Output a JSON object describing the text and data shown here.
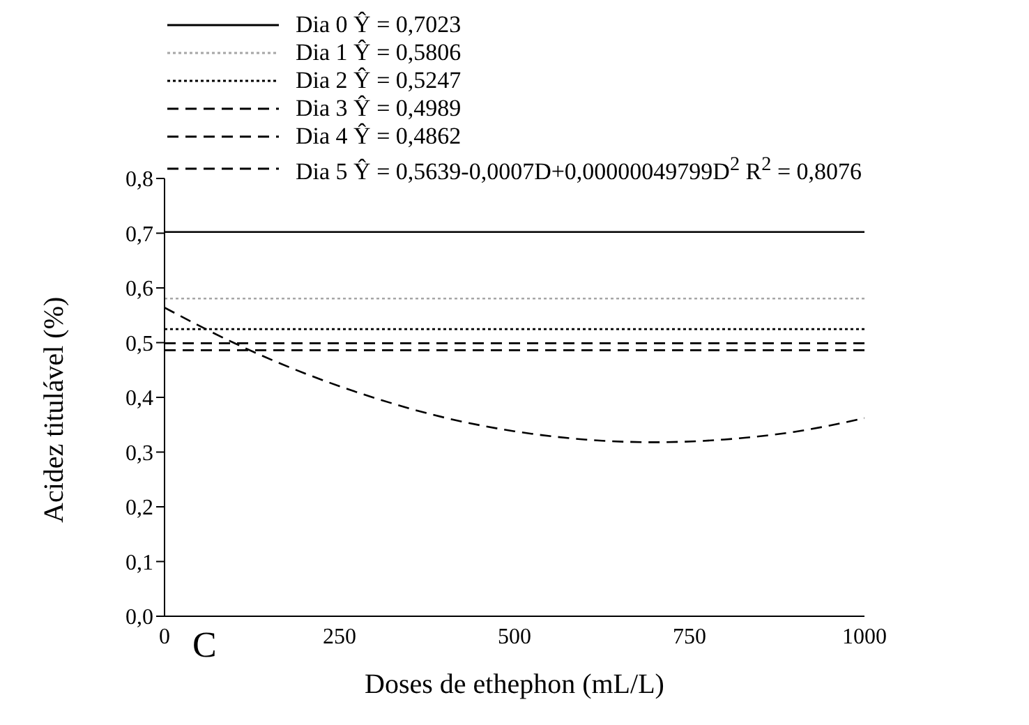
{
  "chart_data": {
    "type": "line",
    "xlabel": "Doses de ethephon (mL/L)",
    "ylabel": "Acidez titulável (%)",
    "xlim": [
      0,
      1000
    ],
    "xticks": [
      0,
      250,
      500,
      750,
      1000
    ],
    "ylim": [
      0,
      0.8
    ],
    "yticks": [
      {
        "value": 0,
        "label": "0,0"
      },
      {
        "value": 0.1,
        "label": "0,1"
      },
      {
        "value": 0.2,
        "label": "0,2"
      },
      {
        "value": 0.3,
        "label": "0,3"
      },
      {
        "value": 0.4,
        "label": "0,4"
      },
      {
        "value": 0.5,
        "label": "0,5"
      },
      {
        "value": 0.6,
        "label": "0,6"
      },
      {
        "value": 0.7,
        "label": "0,7"
      },
      {
        "value": 0.8,
        "label": "0,8"
      }
    ],
    "grid": false,
    "legend": "top",
    "marker": "none",
    "annotations": [
      "C"
    ],
    "series": [
      {
        "name": "Dia 0 Ŷ = 0,7023",
        "color": "#000000",
        "line_style": "solid",
        "x": [
          0,
          1000
        ],
        "values": [
          0.7023,
          0.7023
        ]
      },
      {
        "name": "Dia 1 Ŷ = 0,5806",
        "color": "#a6a6a6",
        "line_style": "dotted",
        "x": [
          0,
          1000
        ],
        "values": [
          0.5806,
          0.5806
        ]
      },
      {
        "name": "Dia 2 Ŷ = 0,5247",
        "color": "#000000",
        "line_style": "dotted",
        "x": [
          0,
          1000
        ],
        "values": [
          0.5247,
          0.5247
        ]
      },
      {
        "name": "Dia 3 Ŷ = 0,4989",
        "color": "#000000",
        "line_style": "dashed",
        "x": [
          0,
          1000
        ],
        "values": [
          0.4989,
          0.4989
        ]
      },
      {
        "name": "Dia 4 Ŷ = 0,4862",
        "color": "#000000",
        "line_style": "dashed",
        "x": [
          0,
          1000
        ],
        "values": [
          0.4862,
          0.4862
        ]
      },
      {
        "name": "Dia 5 Ŷ = 0,5639-0,0007D+0,00000049799D$^{2}$ R$^{2}$ = 0,8076",
        "color": "#000000",
        "line_style": "dashed",
        "x": [
          0,
          100,
          200,
          300,
          400,
          500,
          600,
          700,
          800,
          900,
          1000
        ],
        "values": [
          0.564,
          0.499,
          0.444,
          0.399,
          0.363,
          0.338,
          0.323,
          0.318,
          0.323,
          0.337,
          0.362
        ]
      }
    ]
  }
}
